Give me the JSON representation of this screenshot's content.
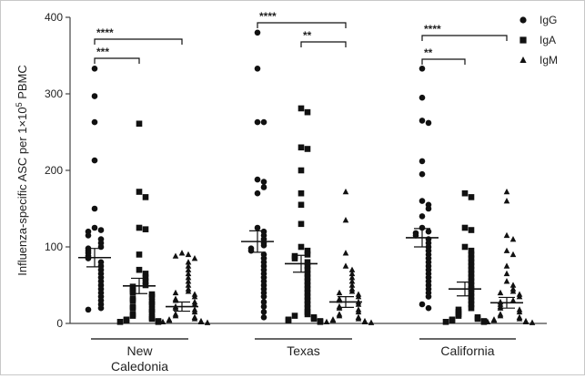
{
  "chart_data": {
    "type": "scatter",
    "ylabel": "Influenza-specific ASC per 1×10",
    "ylabel_sup": "5",
    "ylabel_suffix": " PBMC",
    "ylim": [
      0,
      400
    ],
    "yticks": [
      "0",
      "100",
      "200",
      "300",
      "400"
    ],
    "groups": [
      {
        "label_line1": "New",
        "label_line2": "Caledonia"
      },
      {
        "label_line1": "Texas",
        "label_line2": ""
      },
      {
        "label_line1": "California",
        "label_line2": ""
      }
    ],
    "legend": [
      {
        "name": "IgG",
        "marker": "circle"
      },
      {
        "name": "IgA",
        "marker": "square"
      },
      {
        "name": "IgM",
        "marker": "triangle"
      }
    ],
    "legend_position": "top-right",
    "series": [
      {
        "name": "IgG",
        "marker": "circle",
        "data": [
          [
            333,
            297,
            263,
            213,
            150,
            125,
            122,
            120,
            115,
            110,
            105,
            100,
            98,
            95,
            92,
            88,
            85,
            80,
            75,
            70,
            65,
            60,
            55,
            50,
            45,
            40,
            35,
            30,
            25,
            20,
            18
          ],
          [
            380,
            333,
            263,
            263,
            188,
            185,
            178,
            170,
            125,
            120,
            115,
            110,
            105,
            102,
            98,
            95,
            90,
            85,
            80,
            75,
            70,
            65,
            60,
            55,
            50,
            45,
            40,
            35,
            28,
            22,
            15,
            8
          ],
          [
            333,
            295,
            265,
            262,
            212,
            195,
            160,
            155,
            150,
            140,
            125,
            120,
            118,
            115,
            110,
            105,
            100,
            95,
            90,
            85,
            80,
            75,
            70,
            65,
            60,
            55,
            50,
            45,
            40,
            35,
            25,
            20
          ]
        ],
        "means": [
          86,
          107,
          112
        ],
        "sem": [
          12,
          14,
          12
        ]
      },
      {
        "name": "IgA",
        "marker": "square",
        "data": [
          [
            261,
            172,
            165,
            125,
            123,
            90,
            70,
            65,
            60,
            55,
            50,
            48,
            45,
            42,
            40,
            38,
            35,
            32,
            30,
            28,
            25,
            22,
            20,
            18,
            15,
            12,
            10,
            8,
            6,
            5,
            4,
            3,
            2,
            2
          ],
          [
            281,
            276,
            230,
            228,
            200,
            170,
            155,
            130,
            100,
            95,
            90,
            88,
            85,
            80,
            75,
            70,
            65,
            60,
            55,
            50,
            45,
            40,
            35,
            30,
            25,
            20,
            15,
            12,
            10,
            8,
            6,
            5,
            4,
            3,
            2
          ],
          [
            170,
            165,
            125,
            122,
            100,
            95,
            90,
            85,
            80,
            75,
            70,
            65,
            60,
            55,
            50,
            45,
            40,
            35,
            30,
            25,
            20,
            18,
            15,
            12,
            10,
            8,
            6,
            5,
            4,
            3,
            2,
            2
          ]
        ],
        "means": [
          49,
          78,
          45
        ],
        "sem": [
          10,
          11,
          9
        ]
      },
      {
        "name": "IgM",
        "marker": "triangle",
        "data": [
          [
            92,
            90,
            88,
            85,
            80,
            75,
            70,
            65,
            60,
            55,
            50,
            45,
            42,
            40,
            38,
            35,
            32,
            30,
            28,
            25,
            22,
            20,
            18,
            15,
            12,
            10,
            8,
            6,
            5,
            4,
            3,
            2,
            2,
            1
          ],
          [
            172,
            135,
            92,
            75,
            70,
            65,
            60,
            55,
            50,
            45,
            42,
            40,
            38,
            35,
            32,
            30,
            28,
            25,
            22,
            20,
            18,
            15,
            12,
            10,
            8,
            6,
            5,
            4,
            3,
            2,
            2,
            1
          ],
          [
            172,
            160,
            115,
            110,
            95,
            90,
            75,
            65,
            55,
            50,
            45,
            42,
            40,
            38,
            35,
            30,
            28,
            25,
            22,
            20,
            18,
            15,
            12,
            10,
            8,
            6,
            5,
            4,
            3,
            2,
            2,
            1
          ]
        ],
        "means": [
          22,
          28,
          27
        ],
        "sem": [
          6,
          7,
          7
        ]
      }
    ],
    "significance": [
      {
        "group": 0,
        "from_series": 0,
        "to_series": 2,
        "label": "****"
      },
      {
        "group": 0,
        "from_series": 0,
        "to_series": 1,
        "label": "***"
      },
      {
        "group": 1,
        "from_series": 0,
        "to_series": 2,
        "label": "****"
      },
      {
        "group": 1,
        "from_series": 1,
        "to_series": 2,
        "label": "**"
      },
      {
        "group": 2,
        "from_series": 0,
        "to_series": 2,
        "label": "****"
      },
      {
        "group": 2,
        "from_series": 0,
        "to_series": 1,
        "label": "**"
      }
    ]
  }
}
